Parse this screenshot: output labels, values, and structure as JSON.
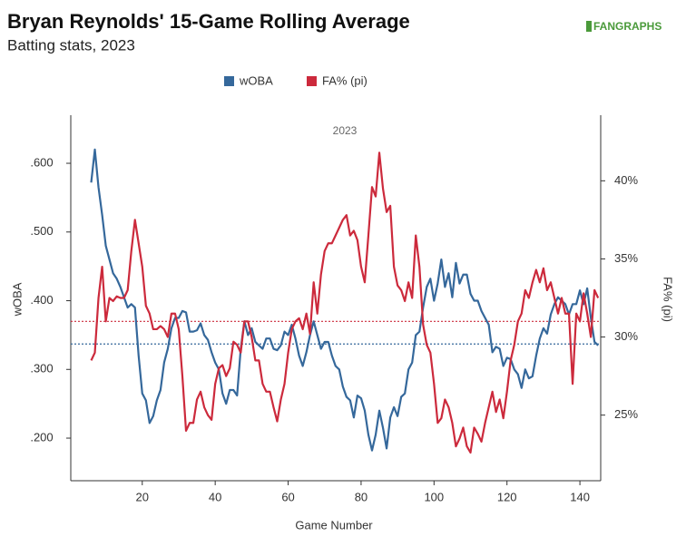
{
  "chart_data": {
    "type": "line",
    "title": "Bryan Reynolds' 15-Game Rolling Average",
    "subtitle": "Batting stats, 2023",
    "brand": "FANGRAPHS",
    "annotation": "2023",
    "xlabel": "Game Number",
    "ylabel": "wOBA",
    "y2label": "FA% (pi)",
    "x": [
      6,
      7,
      8,
      9,
      10,
      11,
      12,
      13,
      14,
      15,
      16,
      17,
      18,
      19,
      20,
      21,
      22,
      23,
      24,
      25,
      26,
      27,
      28,
      29,
      30,
      31,
      32,
      33,
      34,
      35,
      36,
      37,
      38,
      39,
      40,
      41,
      42,
      43,
      44,
      45,
      46,
      47,
      48,
      49,
      50,
      51,
      52,
      53,
      54,
      55,
      56,
      57,
      58,
      59,
      60,
      61,
      62,
      63,
      64,
      65,
      66,
      67,
      68,
      69,
      70,
      71,
      72,
      73,
      74,
      75,
      76,
      77,
      78,
      79,
      80,
      81,
      82,
      83,
      84,
      85,
      86,
      87,
      88,
      89,
      90,
      91,
      92,
      93,
      94,
      95,
      96,
      97,
      98,
      99,
      100,
      101,
      102,
      103,
      104,
      105,
      106,
      107,
      108,
      109,
      110,
      111,
      112,
      113,
      114,
      115,
      116,
      117,
      118,
      119,
      120,
      121,
      122,
      123,
      124,
      125,
      126,
      127,
      128,
      129,
      130,
      131,
      132,
      133,
      134,
      135,
      136,
      137,
      138,
      139,
      140,
      141,
      142,
      143,
      144,
      145
    ],
    "series": [
      {
        "name": "wOBA",
        "color": "#35689b",
        "axis": "y",
        "values": [
          0.572,
          0.62,
          0.565,
          0.525,
          0.48,
          0.46,
          0.44,
          0.432,
          0.42,
          0.405,
          0.39,
          0.395,
          0.39,
          0.32,
          0.265,
          0.255,
          0.222,
          0.232,
          0.255,
          0.27,
          0.31,
          0.33,
          0.36,
          0.375,
          0.375,
          0.385,
          0.383,
          0.355,
          0.355,
          0.357,
          0.367,
          0.35,
          0.343,
          0.325,
          0.31,
          0.3,
          0.265,
          0.25,
          0.27,
          0.27,
          0.262,
          0.33,
          0.37,
          0.35,
          0.36,
          0.34,
          0.335,
          0.33,
          0.345,
          0.345,
          0.33,
          0.328,
          0.335,
          0.355,
          0.35,
          0.365,
          0.345,
          0.32,
          0.305,
          0.325,
          0.35,
          0.37,
          0.35,
          0.33,
          0.34,
          0.34,
          0.32,
          0.305,
          0.3,
          0.275,
          0.26,
          0.255,
          0.23,
          0.262,
          0.258,
          0.24,
          0.205,
          0.182,
          0.205,
          0.24,
          0.215,
          0.185,
          0.23,
          0.245,
          0.232,
          0.26,
          0.265,
          0.3,
          0.31,
          0.35,
          0.355,
          0.39,
          0.42,
          0.432,
          0.4,
          0.425,
          0.46,
          0.42,
          0.44,
          0.405,
          0.455,
          0.425,
          0.438,
          0.438,
          0.41,
          0.4,
          0.4,
          0.385,
          0.375,
          0.365,
          0.325,
          0.333,
          0.33,
          0.305,
          0.317,
          0.315,
          0.3,
          0.293,
          0.273,
          0.3,
          0.287,
          0.29,
          0.32,
          0.345,
          0.36,
          0.352,
          0.38,
          0.395,
          0.405,
          0.4,
          0.395,
          0.38,
          0.395,
          0.395,
          0.415,
          0.395,
          0.418,
          0.375,
          0.34,
          0.335
        ]
      },
      {
        "name": "FA% (pi)",
        "color": "#cc2a3c",
        "axis": "y2",
        "values": [
          28.5,
          29,
          32.5,
          34.5,
          31,
          32.5,
          32.3,
          32.6,
          32.5,
          32.5,
          33,
          35.5,
          37.5,
          36,
          34.5,
          32,
          31.5,
          30.5,
          30.5,
          30.7,
          30.5,
          30,
          31.5,
          31.5,
          30.5,
          27.5,
          24,
          24.5,
          24.5,
          26,
          26.5,
          25.5,
          25,
          24.7,
          27,
          28,
          28.2,
          27.5,
          28,
          29.7,
          29.5,
          29,
          31,
          31,
          30,
          28.5,
          28.5,
          27,
          26.5,
          26.5,
          25.5,
          24.6,
          26,
          27,
          29,
          30.5,
          31,
          31.2,
          30.5,
          31.5,
          30.2,
          33.5,
          31.5,
          34,
          35.5,
          36,
          36,
          36.5,
          37,
          37.5,
          37.8,
          36.5,
          36.8,
          36.2,
          34.5,
          33.5,
          36.5,
          39.6,
          39,
          41.8,
          39.5,
          38,
          38.4,
          34.5,
          33.3,
          33,
          32.3,
          33.5,
          32.5,
          36.5,
          34.5,
          30.8,
          29.5,
          29,
          27,
          24.5,
          24.8,
          26,
          25.5,
          24.5,
          23,
          23.5,
          24.2,
          23,
          22.6,
          24.2,
          23.8,
          23.3,
          24.5,
          25.5,
          26.5,
          25.2,
          26,
          24.8,
          26.5,
          28.5,
          29.5,
          31,
          31.5,
          33,
          32.5,
          33.5,
          34.3,
          33.5,
          34.4,
          33,
          33.5,
          32.5,
          31.5,
          32.5,
          31.5,
          31.5,
          27,
          31.5,
          31,
          32.8,
          31.5,
          30,
          33,
          32.5
        ]
      }
    ],
    "reference_lines": [
      {
        "axis": "y",
        "value": 0.337,
        "color": "#35689b"
      },
      {
        "axis": "y2",
        "value": 31.0,
        "color": "#cc2a3c"
      }
    ],
    "xlim": [
      0.4,
      145.7
    ],
    "xticks": [
      20,
      40,
      60,
      80,
      100,
      120,
      140
    ],
    "ylim": [
      0.138,
      0.67
    ],
    "yticks": [
      {
        "value": 0.2,
        "label": ".200"
      },
      {
        "value": 0.3,
        "label": ".300"
      },
      {
        "value": 0.4,
        "label": ".400"
      },
      {
        "value": 0.5,
        "label": ".500"
      },
      {
        "value": 0.6,
        "label": ".600"
      }
    ],
    "y2lim": [
      20.8,
      44.2
    ],
    "y2ticks": [
      {
        "value": 25,
        "label": "25%"
      },
      {
        "value": 30,
        "label": "30%"
      },
      {
        "value": 35,
        "label": "35%"
      },
      {
        "value": 40,
        "label": "40%"
      }
    ],
    "grid": false
  }
}
